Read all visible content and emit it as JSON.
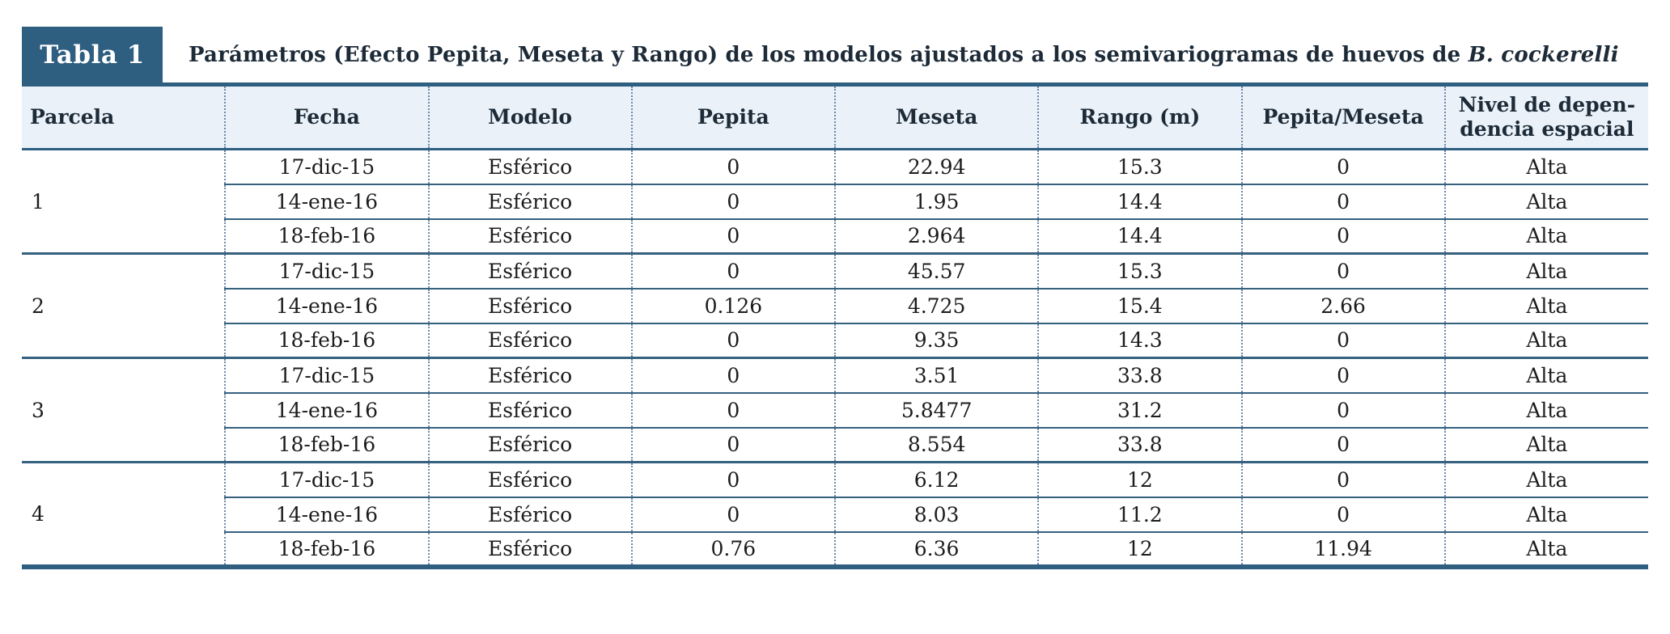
{
  "caption": {
    "badge": "Tabla 1",
    "title_text": "Parámetros (Efecto Pepita, Meseta y Rango) de los modelos ajustados a los semivariogramas de huevos de ",
    "title_italic": "B. cockerelli"
  },
  "columns": {
    "parcela": "Parcela",
    "fecha": "Fecha",
    "modelo": "Modelo",
    "pepita": "Pepita",
    "meseta": "Meseta",
    "rango": "Rango (m)",
    "pepita_meseta": "Pepita/Meseta",
    "nivel_line1": "Nivel de depen-",
    "nivel_line2": "dencia espacial"
  },
  "groups": [
    {
      "parcela": "1",
      "rows": [
        {
          "fecha": "17-dic-15",
          "modelo": "Esférico",
          "pepita": "0",
          "meseta": "22.94",
          "rango": "15.3",
          "pepita_meseta": "0",
          "nivel": "Alta"
        },
        {
          "fecha": "14-ene-16",
          "modelo": "Esférico",
          "pepita": "0",
          "meseta": "1.95",
          "rango": "14.4",
          "pepita_meseta": "0",
          "nivel": "Alta"
        },
        {
          "fecha": "18-feb-16",
          "modelo": "Esférico",
          "pepita": "0",
          "meseta": "2.964",
          "rango": "14.4",
          "pepita_meseta": "0",
          "nivel": "Alta"
        }
      ]
    },
    {
      "parcela": "2",
      "rows": [
        {
          "fecha": "17-dic-15",
          "modelo": "Esférico",
          "pepita": "0",
          "meseta": "45.57",
          "rango": "15.3",
          "pepita_meseta": "0",
          "nivel": "Alta"
        },
        {
          "fecha": "14-ene-16",
          "modelo": "Esférico",
          "pepita": "0.126",
          "meseta": "4.725",
          "rango": "15.4",
          "pepita_meseta": "2.66",
          "nivel": "Alta"
        },
        {
          "fecha": "18-feb-16",
          "modelo": "Esférico",
          "pepita": "0",
          "meseta": "9.35",
          "rango": "14.3",
          "pepita_meseta": "0",
          "nivel": "Alta"
        }
      ]
    },
    {
      "parcela": "3",
      "rows": [
        {
          "fecha": "17-dic-15",
          "modelo": "Esférico",
          "pepita": "0",
          "meseta": "3.51",
          "rango": "33.8",
          "pepita_meseta": "0",
          "nivel": "Alta"
        },
        {
          "fecha": "14-ene-16",
          "modelo": "Esférico",
          "pepita": "0",
          "meseta": "5.8477",
          "rango": "31.2",
          "pepita_meseta": "0",
          "nivel": "Alta"
        },
        {
          "fecha": "18-feb-16",
          "modelo": "Esférico",
          "pepita": "0",
          "meseta": "8.554",
          "rango": "33.8",
          "pepita_meseta": "0",
          "nivel": "Alta"
        }
      ]
    },
    {
      "parcela": "4",
      "rows": [
        {
          "fecha": "17-dic-15",
          "modelo": "Esférico",
          "pepita": "0",
          "meseta": "6.12",
          "rango": "12",
          "pepita_meseta": "0",
          "nivel": "Alta"
        },
        {
          "fecha": "14-ene-16",
          "modelo": "Esférico",
          "pepita": "0",
          "meseta": "8.03",
          "rango": "11.2",
          "pepita_meseta": "0",
          "nivel": "Alta"
        },
        {
          "fecha": "18-feb-16",
          "modelo": "Esférico",
          "pepita": "0.76",
          "meseta": "6.36",
          "rango": "12",
          "pepita_meseta": "11.94",
          "nivel": "Alta"
        }
      ]
    }
  ],
  "colors": {
    "accent_dark": "#2e5e80",
    "header_bg": "#eaf1f8",
    "dotted_grid": "#6f88a8",
    "row_line": "#35617f",
    "text": "#1c1c1c"
  }
}
